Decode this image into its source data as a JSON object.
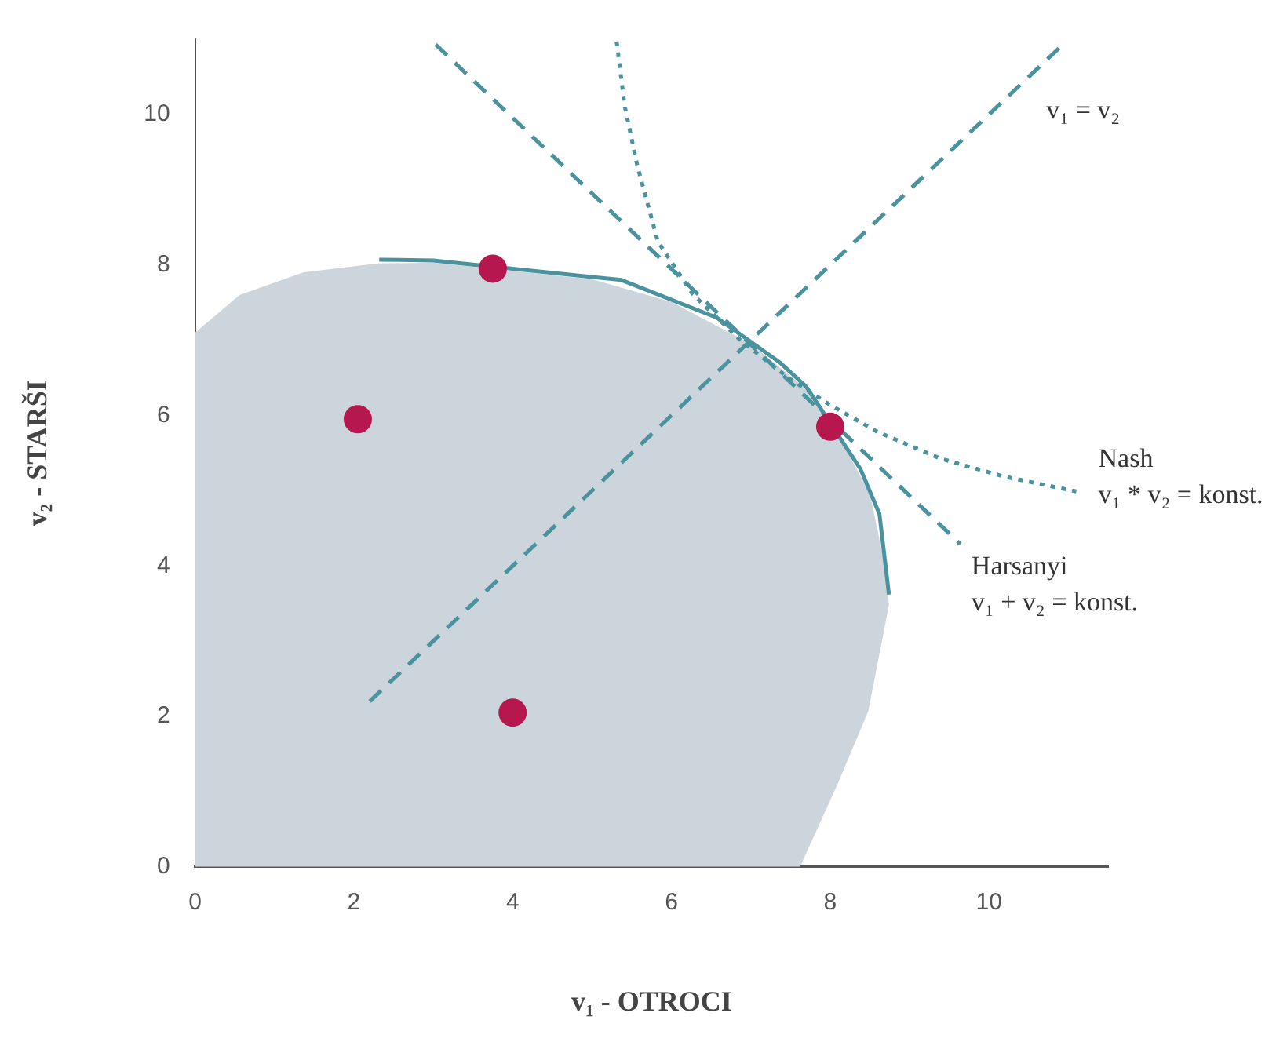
{
  "chart_data": {
    "type": "scatter",
    "xlabel": "v₁ - OTROCI",
    "ylabel": "v₂ - STARŠI",
    "xlim": [
      0,
      11.5
    ],
    "ylim": [
      0,
      11
    ],
    "xticks": [
      0,
      2,
      4,
      6,
      8,
      10
    ],
    "yticks": [
      0,
      2,
      4,
      6,
      8,
      10
    ],
    "grid": false,
    "legend": false,
    "series": [
      {
        "type": "area",
        "color": "#cdd5dc",
        "marker": "none",
        "x": [
          0,
          0,
          0.56,
          1.36,
          2.3,
          3,
          4,
          5,
          6,
          7,
          7.7,
          8.2,
          8.5,
          8.7,
          8.74,
          8.48,
          8.08,
          7.62,
          0
        ],
        "values": [
          0,
          7.1,
          7.6,
          7.9,
          8.02,
          8.03,
          7.92,
          7.81,
          7.51,
          6.95,
          6.35,
          5.55,
          4.96,
          3.95,
          3.48,
          2.07,
          1.07,
          0,
          0
        ]
      },
      {
        "type": "line",
        "color": "#4a929e",
        "marker": "none",
        "line_style": "solid",
        "x": [
          2.32,
          3.0,
          5.37,
          6.57,
          7.37,
          7.7,
          8.38,
          8.62,
          8.74
        ],
        "values": [
          8.07,
          8.06,
          7.8,
          7.3,
          6.7,
          6.38,
          5.29,
          4.69,
          3.62
        ]
      },
      {
        "type": "line",
        "color": "#4a929e",
        "marker": "none",
        "line_style": "dashed",
        "x": [
          2.2,
          10.9
        ],
        "values": [
          2.2,
          10.9
        ]
      },
      {
        "type": "line",
        "color": "#4a929e",
        "marker": "none",
        "line_style": "dashed",
        "x": [
          3.03,
          9.64
        ],
        "values": [
          10.93,
          4.29
        ]
      },
      {
        "type": "line",
        "color": "#4a929e",
        "marker": "none",
        "line_style": "dotted",
        "x": [
          5.31,
          5.41,
          5.57,
          5.83,
          6.27,
          6.87,
          7.47,
          8.0,
          8.58,
          9.38,
          10.18,
          11.1
        ],
        "values": [
          10.97,
          10.12,
          9.32,
          8.31,
          7.61,
          7.0,
          6.5,
          6.14,
          5.79,
          5.43,
          5.19,
          4.99
        ]
      },
      {
        "type": "scatter",
        "color": "#b5174e",
        "marker": "circle",
        "x": [
          3.75,
          2.05,
          4,
          8
        ],
        "values": [
          7.95,
          5.95,
          2.05,
          5.85
        ]
      }
    ],
    "annotations": [
      {
        "text": "v₁ = v₂",
        "x": 10.9,
        "y": 10.9
      },
      {
        "text": "Nash",
        "x": 11.1,
        "y": 4.99
      },
      {
        "text": "v₁ * v₂ = konst.",
        "x": 11.1,
        "y": 4.99
      },
      {
        "text": "Harsanyi",
        "x": 9.64,
        "y": 4.29
      },
      {
        "text": "v₁ + v₂ = konst.",
        "x": 9.64,
        "y": 4.29
      }
    ]
  }
}
